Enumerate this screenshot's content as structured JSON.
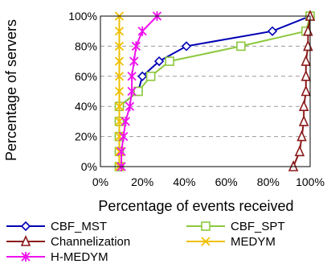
{
  "chart_data": {
    "type": "line",
    "title": "",
    "xlabel": "Percentage of events received",
    "ylabel": "Percentage of servers",
    "xlim": [
      0,
      100
    ],
    "ylim": [
      0,
      100
    ],
    "x_ticks": [
      "0%",
      "20%",
      "40%",
      "60%",
      "80%",
      "100%"
    ],
    "y_ticks": [
      "0%",
      "20%",
      "40%",
      "60%",
      "80%",
      "100%"
    ],
    "grid": "horizontal-dashed",
    "legend_position": "bottom",
    "series": [
      {
        "name": "CBF_MST",
        "color": "#0000b4",
        "marker": "diamond",
        "points": [
          [
            9,
            0
          ],
          [
            9,
            10
          ],
          [
            9,
            20
          ],
          [
            9,
            30
          ],
          [
            9,
            40
          ],
          [
            18,
            50
          ],
          [
            20,
            60
          ],
          [
            28,
            70
          ],
          [
            41,
            80
          ],
          [
            82,
            90
          ],
          [
            100,
            100
          ]
        ]
      },
      {
        "name": "CBF_SPT",
        "color": "#8cc83c",
        "marker": "square",
        "points": [
          [
            9,
            0
          ],
          [
            9,
            10
          ],
          [
            9,
            20
          ],
          [
            9,
            30
          ],
          [
            9,
            40
          ],
          [
            18,
            50
          ],
          [
            24,
            60
          ],
          [
            33,
            70
          ],
          [
            67,
            80
          ],
          [
            98,
            90
          ],
          [
            100,
            100
          ]
        ]
      },
      {
        "name": "Channelization",
        "color": "#8b1a1a",
        "marker": "triangle",
        "points": [
          [
            92,
            0
          ],
          [
            95,
            10
          ],
          [
            96,
            20
          ],
          [
            97,
            30
          ],
          [
            97,
            40
          ],
          [
            98,
            50
          ],
          [
            98,
            60
          ],
          [
            98,
            70
          ],
          [
            99,
            80
          ],
          [
            99,
            90
          ],
          [
            100,
            100
          ]
        ]
      },
      {
        "name": "MEDYM",
        "color": "#f0c000",
        "marker": "x",
        "points": [
          [
            9,
            0
          ],
          [
            9,
            10
          ],
          [
            9,
            20
          ],
          [
            9,
            30
          ],
          [
            9,
            40
          ],
          [
            9,
            50
          ],
          [
            9,
            60
          ],
          [
            9,
            70
          ],
          [
            9,
            80
          ],
          [
            9,
            90
          ],
          [
            9,
            100
          ]
        ]
      },
      {
        "name": "H-MEDYM",
        "color": "#ee11ee",
        "marker": "star",
        "points": [
          [
            10,
            0
          ],
          [
            10,
            10
          ],
          [
            11,
            20
          ],
          [
            12,
            30
          ],
          [
            14,
            40
          ],
          [
            15,
            50
          ],
          [
            15,
            60
          ],
          [
            16,
            70
          ],
          [
            17,
            80
          ],
          [
            20,
            90
          ],
          [
            27,
            100
          ]
        ]
      }
    ]
  }
}
